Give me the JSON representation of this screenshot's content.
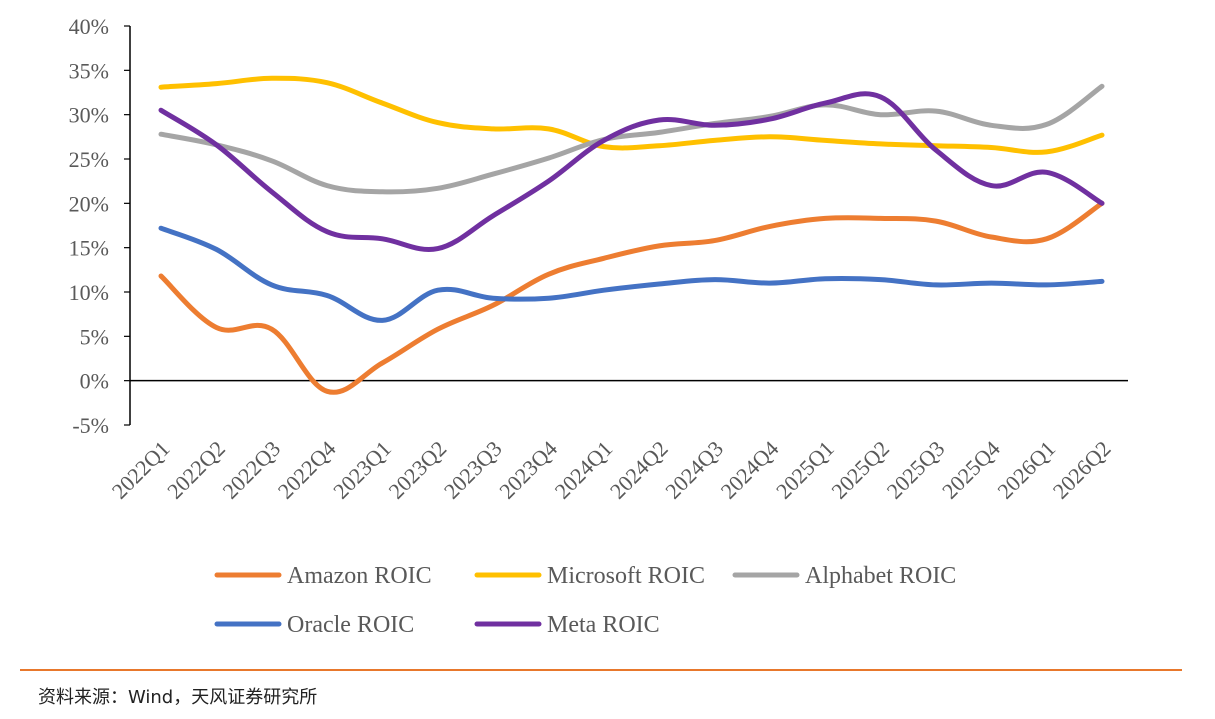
{
  "chart_data": {
    "type": "line",
    "title": "",
    "xlabel": "",
    "ylabel": "",
    "ylim": [
      -5,
      40
    ],
    "y_ticks": [
      "40%",
      "35%",
      "30%",
      "25%",
      "20%",
      "15%",
      "10%",
      "5%",
      "0%",
      "-5%"
    ],
    "y_tick_values": [
      40,
      35,
      30,
      25,
      20,
      15,
      10,
      5,
      0,
      -5
    ],
    "categories": [
      "2022Q1",
      "2022Q2",
      "2022Q3",
      "2022Q4",
      "2023Q1",
      "2023Q2",
      "2023Q3",
      "2023Q4",
      "2024Q1",
      "2024Q2",
      "2024Q3",
      "2024Q4",
      "2025Q1",
      "2025Q2",
      "2025Q3",
      "2025Q4",
      "2026Q1",
      "2026Q2"
    ],
    "grid": false,
    "legend_position": "bottom",
    "series": [
      {
        "name": "Amazon ROIC",
        "color": "#ed7d31",
        "values": [
          11.8,
          6.0,
          5.8,
          -1.2,
          2.0,
          5.8,
          8.5,
          12.0,
          13.8,
          15.2,
          15.8,
          17.4,
          18.3,
          18.3,
          18.0,
          16.2,
          16.0,
          20.0
        ]
      },
      {
        "name": "Microsoft ROIC",
        "color": "#ffc000",
        "values": [
          33.1,
          33.5,
          34.1,
          33.6,
          31.3,
          29.1,
          28.4,
          28.4,
          26.4,
          26.5,
          27.1,
          27.5,
          27.1,
          26.7,
          26.5,
          26.3,
          25.8,
          27.7
        ]
      },
      {
        "name": "Alphabet ROIC",
        "color": "#a5a5a5",
        "values": [
          27.8,
          26.6,
          24.8,
          22.0,
          21.3,
          21.7,
          23.3,
          25.1,
          27.2,
          28.0,
          29.0,
          29.8,
          31.1,
          30.0,
          30.4,
          28.8,
          28.9,
          33.2
        ]
      },
      {
        "name": "Oracle ROIC",
        "color": "#4472c4",
        "values": [
          17.2,
          14.8,
          10.8,
          9.6,
          6.8,
          10.2,
          9.3,
          9.3,
          10.2,
          10.9,
          11.4,
          11.0,
          11.5,
          11.4,
          10.8,
          11.0,
          10.8,
          11.2
        ]
      },
      {
        "name": "Meta ROIC",
        "color": "#7030a0",
        "values": [
          30.5,
          26.6,
          21.3,
          16.8,
          16.0,
          14.9,
          18.6,
          22.5,
          27.1,
          29.4,
          28.8,
          29.5,
          31.3,
          32.0,
          26.0,
          22.0,
          23.5,
          20.0
        ]
      }
    ]
  },
  "source": {
    "text": "资料来源：Wind，天风证券研究所"
  }
}
